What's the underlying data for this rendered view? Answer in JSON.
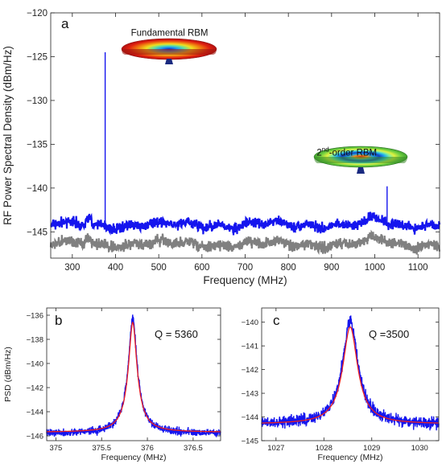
{
  "chart_data": [
    {
      "panel": "a",
      "type": "line",
      "xlabel": "Frequency (MHz)",
      "ylabel": "RF Power Spectral Density (dBm/Hz)",
      "xlim": [
        250,
        1150
      ],
      "ylim": [
        -148,
        -120
      ],
      "xticks": [
        300,
        400,
        500,
        600,
        700,
        800,
        900,
        1000,
        1100
      ],
      "yticks": [
        -145,
        -140,
        -135,
        -130,
        -125,
        -120
      ],
      "annotations": [
        {
          "text": "Fundamental RBM",
          "x": 525,
          "y": -122.6
        },
        {
          "text_main": "2",
          "text_sup": "nd",
          "text_rest": "-order RBM",
          "x": 970,
          "y": -136.3
        }
      ],
      "series": [
        {
          "color": "#1515ee",
          "baseline_dBm": -144.2,
          "peaks": [
            {
              "x": 376,
              "y": -124.5
            },
            {
              "x": 1028.5,
              "y": -139.8
            }
          ]
        },
        {
          "color": "#808080",
          "baseline_dBm": -146.4
        }
      ]
    },
    {
      "panel": "b",
      "type": "line",
      "xlabel": "Frequency (MHz)",
      "ylabel": "PSD (dBm/Hz)",
      "xlim": [
        374.9,
        376.8
      ],
      "ylim": [
        -146.4,
        -135.4
      ],
      "xticks": [
        375,
        375.5,
        376,
        376.5
      ],
      "yticks": [
        -146,
        -144,
        -142,
        -140,
        -138,
        -136
      ],
      "annotation": "Q = 5360",
      "series": [
        {
          "color": "#1515ee",
          "center": 375.84,
          "peak": -136.2,
          "baseline": -145.8
        },
        {
          "color": "#ee2020",
          "center": 375.84,
          "peak": -136.6,
          "baseline": -145.7
        }
      ]
    },
    {
      "panel": "c",
      "type": "line",
      "xlabel": "Frequency (MHz)",
      "ylabel": "",
      "xlim": [
        1026.7,
        1030.4
      ],
      "ylim": [
        -145,
        -139.4
      ],
      "xticks": [
        1027,
        1028,
        1029,
        1030
      ],
      "yticks": [
        -145,
        -144,
        -143,
        -142,
        -141,
        -140
      ],
      "annotation": "Q =3500",
      "series": [
        {
          "color": "#1515ee",
          "center": 1028.55,
          "peak": -139.9,
          "baseline": -144.3
        },
        {
          "color": "#ee2020",
          "center": 1028.55,
          "peak": -140.2,
          "baseline": -144.3
        }
      ]
    }
  ]
}
